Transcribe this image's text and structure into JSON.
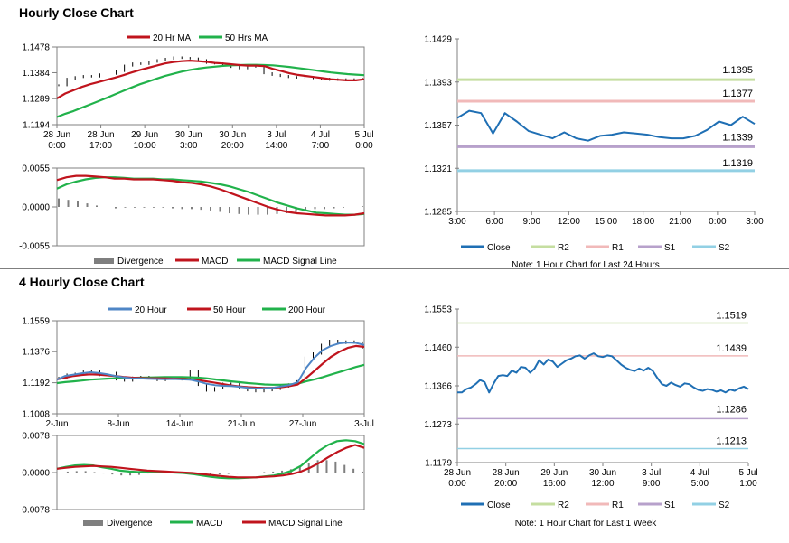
{
  "sections": {
    "hourly_title": "Hourly Close Chart",
    "four_hourly_title": "4 Hourly Close Chart"
  },
  "colors": {
    "ma_red": "#c0141d",
    "ma_green": "#21b24b",
    "ma_blue": "#4f86c6",
    "line_blue": "#1f6fb4",
    "r2": "#c5dea0",
    "r1": "#f1b9b9",
    "s1": "#b7a1cb",
    "s2": "#92d0e4",
    "divergence": "#7f7f7f",
    "candle": "#000000"
  },
  "chart_data": [
    {
      "id": "hourly_price",
      "type": "line",
      "yticks": [
        "1.1478",
        "1.1384",
        "1.1289",
        "1.1194"
      ],
      "ylim": [
        1.1194,
        1.1478
      ],
      "xticks": [
        [
          "28 Jun",
          "0:00"
        ],
        [
          "28 Jun",
          "17:00"
        ],
        [
          "29 Jun",
          "10:00"
        ],
        [
          "30 Jun",
          "3:00"
        ],
        [
          "30 Jun",
          "20:00"
        ],
        [
          "3 Jul",
          "14:00"
        ],
        [
          "4 Jul",
          "7:00"
        ],
        [
          "5 Jul",
          "0:00"
        ]
      ],
      "legend": [
        "20 Hr MA",
        "50 Hrs MA"
      ],
      "price": [
        1.1338,
        1.1362,
        1.1368,
        1.1372,
        1.137,
        1.1378,
        1.138,
        1.139,
        1.141,
        1.1418,
        1.1416,
        1.1424,
        1.143,
        1.1435,
        1.144,
        1.1438,
        1.1436,
        1.143,
        1.142,
        1.1418,
        1.1412,
        1.1405,
        1.14,
        1.141,
        1.1406,
        1.1382,
        1.1376,
        1.1372,
        1.1368,
        1.1366,
        1.1368,
        1.1364,
        1.1362,
        1.1358,
        1.136,
        1.1356,
        1.136,
        1.1362
      ],
      "ma20": [
        1.129,
        1.1308,
        1.132,
        1.1332,
        1.1342,
        1.135,
        1.1358,
        1.1366,
        1.1375,
        1.1385,
        1.1394,
        1.1402,
        1.141,
        1.1418,
        1.1423,
        1.1426,
        1.1428,
        1.1426,
        1.1424,
        1.142,
        1.1418,
        1.1415,
        1.1412,
        1.141,
        1.141,
        1.1408,
        1.1398,
        1.139,
        1.1382,
        1.1376,
        1.1372,
        1.1368,
        1.1364,
        1.136,
        1.1358,
        1.1356,
        1.1356,
        1.136
      ],
      "ma50": [
        1.1222,
        1.1234,
        1.1244,
        1.1256,
        1.1268,
        1.128,
        1.1292,
        1.1305,
        1.1318,
        1.133,
        1.1342,
        1.1352,
        1.1362,
        1.1372,
        1.138,
        1.1388,
        1.1394,
        1.1399,
        1.1403,
        1.1406,
        1.1409,
        1.1411,
        1.1412,
        1.1413,
        1.1413,
        1.1412,
        1.1411,
        1.1408,
        1.1405,
        1.1401,
        1.1397,
        1.1393,
        1.1389,
        1.1385,
        1.1382,
        1.1379,
        1.1377,
        1.1375
      ]
    },
    {
      "id": "hourly_macd",
      "type": "line",
      "yticks": [
        "0.0055",
        "0.0000",
        "-0.0055"
      ],
      "ylim": [
        -0.0055,
        0.0055
      ],
      "legend": [
        "Divergence",
        "MACD",
        "MACD Signal Line"
      ],
      "macd": [
        0.0038,
        0.0042,
        0.0044,
        0.0044,
        0.0043,
        0.0042,
        0.004,
        0.004,
        0.0039,
        0.0039,
        0.0039,
        0.0038,
        0.0037,
        0.0035,
        0.0034,
        0.0032,
        0.0029,
        0.0025,
        0.002,
        0.0015,
        0.001,
        0.0005,
        0.0,
        -0.0004,
        -0.0007,
        -0.0009,
        -0.001,
        -0.0011,
        -0.0012,
        -0.0012,
        -0.0012,
        -0.0011,
        -0.0009
      ],
      "signal": [
        0.0026,
        0.0032,
        0.0036,
        0.0039,
        0.0041,
        0.0042,
        0.0042,
        0.0041,
        0.004,
        0.004,
        0.004,
        0.0039,
        0.0039,
        0.0038,
        0.0037,
        0.0036,
        0.0034,
        0.0032,
        0.0029,
        0.0025,
        0.0021,
        0.0016,
        0.0011,
        0.0006,
        0.0002,
        -0.0002,
        -0.0005,
        -0.0008,
        -0.0009,
        -0.001,
        -0.0011,
        -0.0011,
        -0.001
      ],
      "divergence": [
        0.0012,
        0.001,
        0.0008,
        0.0005,
        0.0002,
        0.0,
        -0.0002,
        -0.0001,
        -0.0001,
        -0.0001,
        -0.0001,
        -0.0001,
        -0.0002,
        -0.0003,
        -0.0003,
        -0.0004,
        -0.0005,
        -0.0007,
        -0.0009,
        -0.001,
        -0.0011,
        -0.0011,
        -0.0011,
        -0.001,
        -0.0009,
        -0.0007,
        -0.0005,
        -0.0003,
        -0.0003,
        -0.0002,
        -0.0001,
        0.0,
        0.0001
      ]
    },
    {
      "id": "hourly_pivot",
      "type": "line",
      "yticks": [
        "1.1429",
        "1.1393",
        "1.1357",
        "1.1321",
        "1.1285"
      ],
      "ylim": [
        1.1285,
        1.1429
      ],
      "xticks": [
        "3:00",
        "6:00",
        "9:00",
        "12:00",
        "15:00",
        "18:00",
        "21:00",
        "0:00",
        "3:00"
      ],
      "levels": {
        "R2": 1.1395,
        "R1": 1.1377,
        "S1": 1.1339,
        "S2": 1.1319
      },
      "level_labels": {
        "R2": "1.1395",
        "R1": "1.1377",
        "S1": "1.1339",
        "S2": "1.1319"
      },
      "close": [
        1.1363,
        1.1369,
        1.1367,
        1.135,
        1.1367,
        1.136,
        1.1352,
        1.1349,
        1.1346,
        1.1351,
        1.1346,
        1.1344,
        1.1348,
        1.1349,
        1.1351,
        1.135,
        1.1349,
        1.1347,
        1.1346,
        1.1346,
        1.1348,
        1.1353,
        1.136,
        1.1357,
        1.1364,
        1.1358
      ],
      "legend": [
        "Close",
        "R2",
        "R1",
        "S1",
        "S2"
      ],
      "note": "Note: 1 Hour Chart for Last 24 Hours"
    },
    {
      "id": "four_hourly_price",
      "type": "line",
      "yticks": [
        "1.1559",
        "1.1376",
        "1.1192",
        "1.1008"
      ],
      "ylim": [
        1.1008,
        1.1559
      ],
      "xticks": [
        "2-Jun",
        "8-Jun",
        "14-Jun",
        "21-Jun",
        "27-Jun",
        "3-Jul"
      ],
      "legend": [
        "20 Hour",
        "50 Hour",
        "200 Hour"
      ],
      "price": [
        1.122,
        1.124,
        1.1245,
        1.1262,
        1.1258,
        1.1238,
        1.125,
        1.1212,
        1.1205,
        1.1222,
        1.1226,
        1.1218,
        1.1208,
        1.1218,
        1.1215,
        1.1212,
        1.126,
        1.118,
        1.1146,
        1.116,
        1.1186,
        1.1185,
        1.116,
        1.1148,
        1.1142,
        1.1148,
        1.1156,
        1.117,
        1.1182,
        1.12,
        1.134,
        1.1365,
        1.1416,
        1.144,
        1.1428,
        1.1436,
        1.143,
        1.14
      ],
      "ma20": [
        1.121,
        1.1232,
        1.124,
        1.1248,
        1.1254,
        1.125,
        1.1243,
        1.1232,
        1.1224,
        1.1218,
        1.1217,
        1.1215,
        1.1214,
        1.1213,
        1.1214,
        1.1212,
        1.121,
        1.12,
        1.1186,
        1.1178,
        1.1174,
        1.1172,
        1.1168,
        1.1162,
        1.1158,
        1.116,
        1.1162,
        1.117,
        1.1178,
        1.1196,
        1.128,
        1.134,
        1.1385,
        1.141,
        1.1425,
        1.143,
        1.1428,
        1.1415
      ],
      "ma50": [
        1.1212,
        1.1222,
        1.1232,
        1.1238,
        1.1242,
        1.124,
        1.1236,
        1.1232,
        1.1226,
        1.1222,
        1.122,
        1.1218,
        1.1218,
        1.1217,
        1.1216,
        1.1215,
        1.1212,
        1.1208,
        1.12,
        1.1192,
        1.1184,
        1.1176,
        1.117,
        1.1166,
        1.1163,
        1.1162,
        1.1162,
        1.1166,
        1.1172,
        1.1182,
        1.122,
        1.1262,
        1.1305,
        1.1345,
        1.1375,
        1.1398,
        1.141,
        1.1404
      ],
      "ma200": [
        1.119,
        1.1196,
        1.12,
        1.1205,
        1.121,
        1.1213,
        1.1216,
        1.1218,
        1.122,
        1.1221,
        1.1222,
        1.1223,
        1.1224,
        1.1225,
        1.1225,
        1.1225,
        1.1224,
        1.1222,
        1.1218,
        1.1212,
        1.1206,
        1.12,
        1.1195,
        1.119,
        1.1186,
        1.1182,
        1.118,
        1.118,
        1.1182,
        1.1186,
        1.12,
        1.1212,
        1.1225,
        1.124,
        1.1255,
        1.127,
        1.1285,
        1.1298
      ]
    },
    {
      "id": "four_hourly_macd",
      "type": "line",
      "yticks": [
        "0.0078",
        "0.0000",
        "-0.0078"
      ],
      "ylim": [
        -0.0078,
        0.0078
      ],
      "legend": [
        "Divergence",
        "MACD",
        "MACD Signal Line"
      ],
      "macd": [
        0.0008,
        0.0012,
        0.0015,
        0.0016,
        0.0015,
        0.0011,
        0.0008,
        0.0004,
        0.0002,
        0.0001,
        0.0002,
        0.0002,
        0.0001,
        0.0,
        -0.0001,
        -0.0003,
        -0.0006,
        -0.0009,
        -0.0011,
        -0.0012,
        -0.0012,
        -0.0011,
        -0.001,
        -0.0008,
        -0.0006,
        -0.0002,
        0.0004,
        0.0014,
        0.003,
        0.0046,
        0.0058,
        0.0066,
        0.0068,
        0.0066,
        0.006
      ],
      "signal": [
        0.0008,
        0.001,
        0.0012,
        0.0013,
        0.0014,
        0.0013,
        0.0012,
        0.001,
        0.0008,
        0.0006,
        0.0004,
        0.0003,
        0.0002,
        0.0001,
        0.0,
        -0.0001,
        -0.0003,
        -0.0005,
        -0.0007,
        -0.0009,
        -0.001,
        -0.001,
        -0.001,
        -0.0009,
        -0.0008,
        -0.0006,
        -0.0003,
        0.0002,
        0.001,
        0.002,
        0.0032,
        0.0043,
        0.0052,
        0.0058,
        0.0052
      ],
      "divergence": [
        0.0,
        0.0002,
        0.0003,
        0.0003,
        0.0001,
        -0.0002,
        -0.0004,
        -0.0006,
        -0.0006,
        -0.0005,
        -0.0002,
        -0.0001,
        -0.0001,
        -0.0001,
        -0.0001,
        -0.0002,
        -0.0003,
        -0.0004,
        -0.0004,
        -0.0003,
        -0.0002,
        -0.0001,
        0.0,
        0.0001,
        0.0002,
        0.0004,
        0.0007,
        0.0012,
        0.002,
        0.0026,
        0.0026,
        0.0023,
        0.0016,
        0.0008,
        0.0002
      ]
    },
    {
      "id": "four_hourly_pivot",
      "type": "line",
      "yticks": [
        "1.1553",
        "1.1460",
        "1.1366",
        "1.1273",
        "1.1179"
      ],
      "ylim": [
        1.1179,
        1.1553
      ],
      "xticks": [
        [
          "28 Jun",
          "0:00"
        ],
        [
          "28 Jun",
          "20:00"
        ],
        [
          "29 Jun",
          "16:00"
        ],
        [
          "30 Jun",
          "12:00"
        ],
        [
          "3 Jul",
          "9:00"
        ],
        [
          "4 Jul",
          "5:00"
        ],
        [
          "5 Jul",
          "1:00"
        ]
      ],
      "levels": {
        "R2": 1.1519,
        "R1": 1.1439,
        "S1": 1.1286,
        "S2": 1.1213
      },
      "level_labels": {
        "R2": "1.1519",
        "R1": "1.1439",
        "S1": "1.1286",
        "S2": "1.1213"
      },
      "close": [
        1.135,
        1.135,
        1.1358,
        1.1362,
        1.137,
        1.138,
        1.1375,
        1.135,
        1.1372,
        1.139,
        1.1392,
        1.139,
        1.1403,
        1.1398,
        1.1412,
        1.141,
        1.1398,
        1.1408,
        1.1428,
        1.1418,
        1.143,
        1.1425,
        1.1412,
        1.142,
        1.1428,
        1.1432,
        1.1438,
        1.144,
        1.1432,
        1.144,
        1.1445,
        1.1438,
        1.1436,
        1.144,
        1.1438,
        1.1428,
        1.1418,
        1.141,
        1.1405,
        1.1402,
        1.1408,
        1.1403,
        1.141,
        1.1402,
        1.1385,
        1.137,
        1.1366,
        1.1374,
        1.1368,
        1.1364,
        1.1372,
        1.137,
        1.1362,
        1.1356,
        1.1354,
        1.1358,
        1.1356,
        1.1352,
        1.1355,
        1.135,
        1.1357,
        1.1354,
        1.136,
        1.1364,
        1.1358
      ],
      "legend": [
        "Close",
        "R2",
        "R1",
        "S1",
        "S2"
      ],
      "note": "Note: 1 Hour Chart for Last 1 Week"
    }
  ]
}
